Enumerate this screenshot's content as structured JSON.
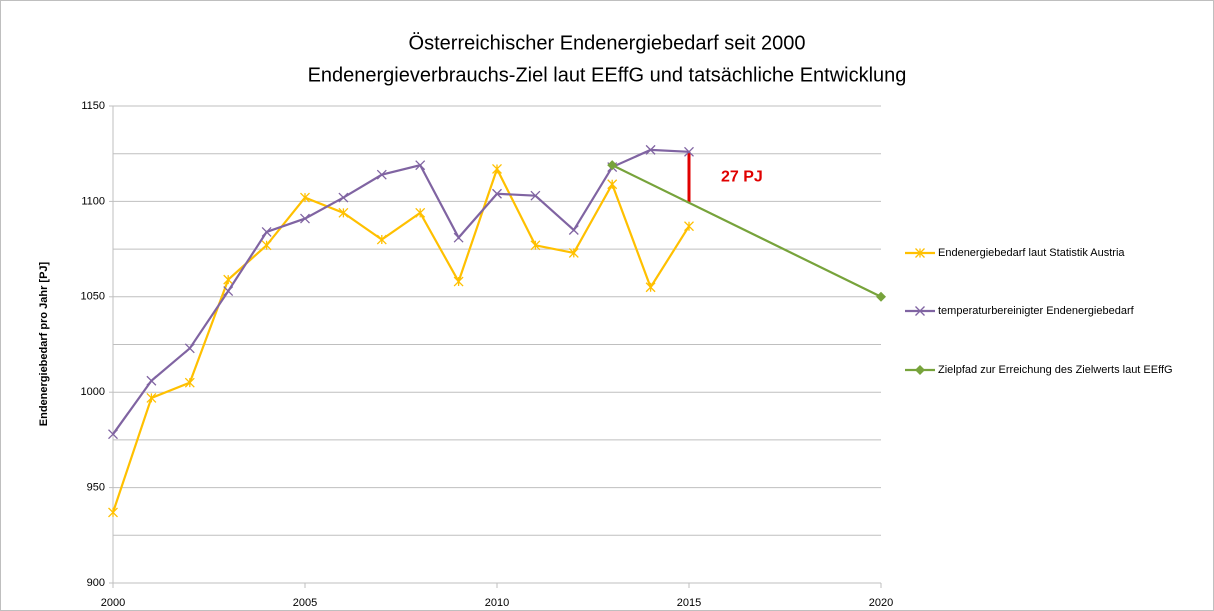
{
  "chart_data": {
    "type": "line",
    "title": "Österreichischer Endenergiebedarf seit 2000",
    "subtitle": "Endenergieverbrauchs-Ziel laut EEffG und tatsächliche Entwicklung",
    "y_label": "Endenergiebedarf pro Jahr [PJ]",
    "xlim": [
      2000,
      2020
    ],
    "xticks": [
      2000,
      2005,
      2010,
      2015,
      2020
    ],
    "ylim": [
      900,
      1150
    ],
    "yticks": [
      900,
      950,
      1000,
      1050,
      1100,
      1150
    ],
    "ygrid": [
      900,
      925,
      950,
      975,
      1000,
      1025,
      1050,
      1075,
      1100,
      1125,
      1150
    ],
    "grid": true,
    "legend": "right",
    "series": [
      {
        "name": "Endenergiebedarf laut Statistik Austria",
        "color": "#ffc000",
        "marker": "star",
        "x": [
          2000,
          2001,
          2002,
          2003,
          2004,
          2005,
          2006,
          2007,
          2008,
          2009,
          2010,
          2011,
          2012,
          2013,
          2014,
          2015
        ],
        "values": [
          937,
          997,
          1005,
          1059,
          1077,
          1102,
          1094,
          1080,
          1094,
          1058,
          1117,
          1077,
          1073,
          1109,
          1055,
          1087
        ]
      },
      {
        "name": "temperaturbereinigter Endenergiebedarf",
        "color": "#8064a2",
        "marker": "x",
        "x": [
          2000,
          2001,
          2002,
          2003,
          2004,
          2005,
          2006,
          2007,
          2008,
          2009,
          2010,
          2011,
          2012,
          2013,
          2014,
          2015
        ],
        "values": [
          978,
          1006,
          1023,
          1053,
          1084,
          1091,
          1102,
          1114,
          1119,
          1081,
          1104,
          1103,
          1085,
          1118,
          1127,
          1126
        ]
      },
      {
        "name": "Zielpfad zur Erreichung des Zielwerts laut EEffG",
        "color": "#77a33b",
        "marker": "diamond",
        "x": [
          2013,
          2020
        ],
        "values": [
          1119,
          1050
        ]
      }
    ],
    "annotation": {
      "text": "27 PJ",
      "color": "#e00000",
      "x": 2015
    }
  }
}
